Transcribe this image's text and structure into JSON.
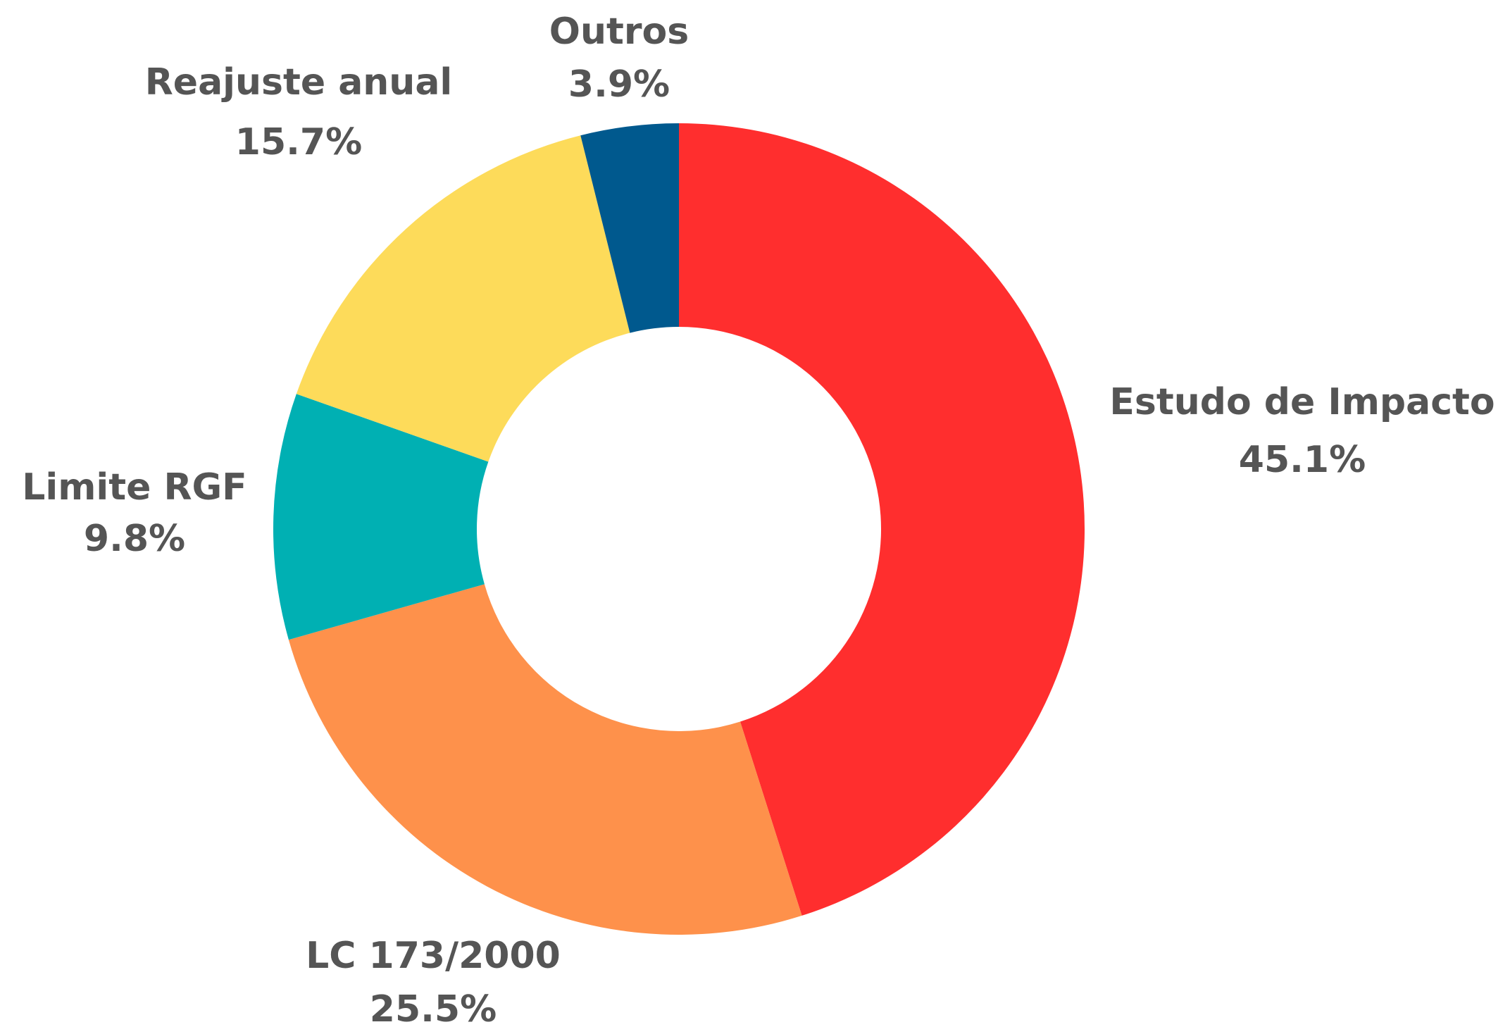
{
  "chart_data": {
    "type": "donut",
    "categories": [
      "Estudo de Impacto",
      "LC 173/2000",
      "Limite RGF",
      "Reajuste anual",
      "Outros"
    ],
    "values": [
      45.1,
      25.5,
      9.8,
      15.7,
      3.9
    ],
    "value_labels": [
      "45.1%",
      "25.5%",
      "9.8%",
      "15.7%",
      "3.9%"
    ],
    "colors": [
      "#ff2e2e",
      "#fe914b",
      "#00b0b3",
      "#fddb5a",
      "#00598e"
    ]
  }
}
